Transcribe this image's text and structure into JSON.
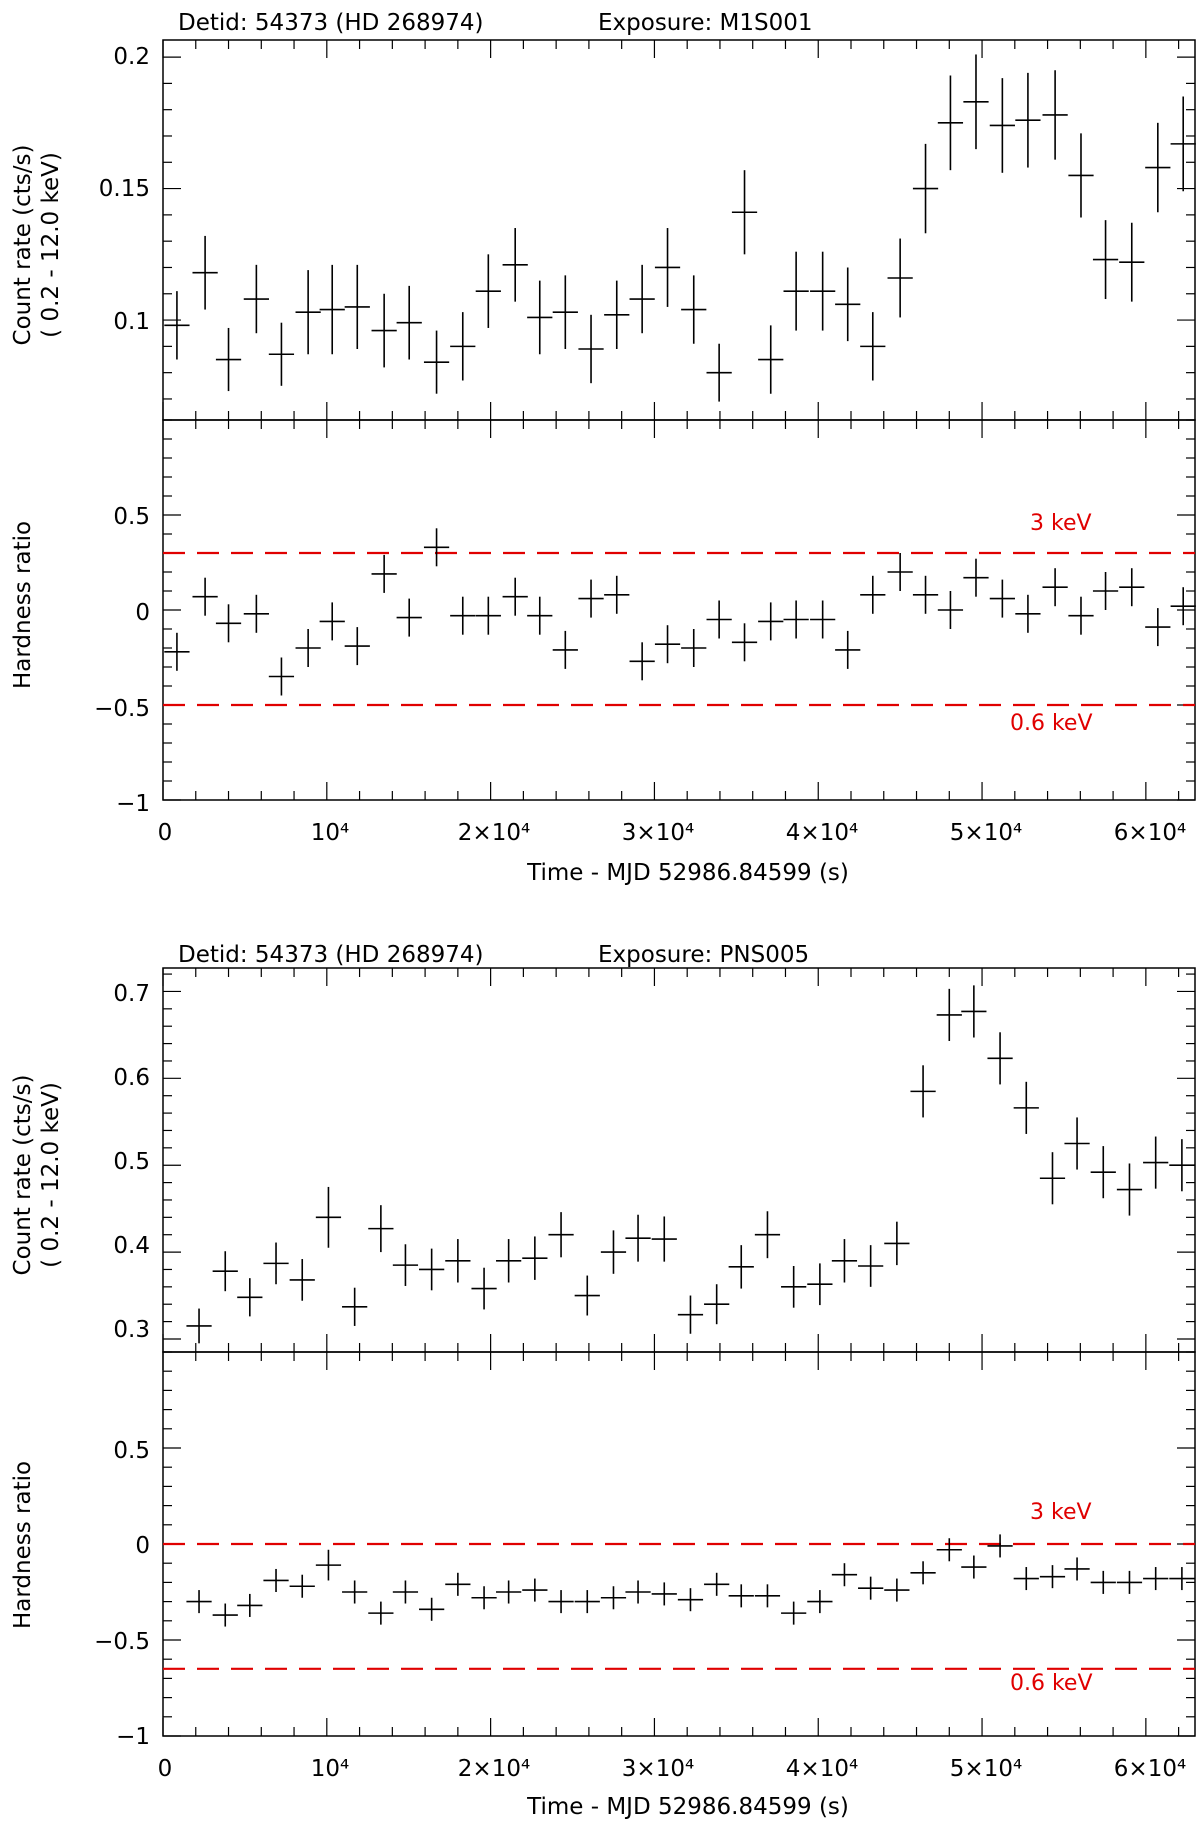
{
  "panels": [
    {
      "title_detid": "Detid: 54373 (HD 268974)",
      "title_exposure": "Exposure: M1S001",
      "xlabel": "Time - MJD  52986.84599 (s)",
      "top_ylabel_1": "Count rate (cts/s)",
      "top_ylabel_2": "( 0.2 - 12.0 keV)",
      "bottom_ylabel": "Hardness ratio",
      "x_tick_labels": [
        "0",
        "10⁴",
        "2×10⁴",
        "3×10⁴",
        "4×10⁴",
        "5×10⁴",
        "6×10⁴"
      ],
      "top_ytick_labels": [
        "0.1",
        "0.15",
        "0.2"
      ],
      "bottom_ytick_labels": [
        "−1",
        "−0.5",
        "0",
        "0.5"
      ],
      "ref_label_high": "3 keV",
      "ref_label_low": "0.6 keV"
    },
    {
      "title_detid": "Detid: 54373 (HD 268974)",
      "title_exposure": "Exposure: PNS005",
      "xlabel": "Time - MJD  52986.84599 (s)",
      "top_ylabel_1": "Count rate (cts/s)",
      "top_ylabel_2": "( 0.2 - 12.0 keV)",
      "bottom_ylabel": "Hardness ratio",
      "x_tick_labels": [
        "0",
        "10⁴",
        "2×10⁴",
        "3×10⁴",
        "4×10⁴",
        "5×10⁴",
        "6×10⁴"
      ],
      "top_ytick_labels": [
        "0.3",
        "0.4",
        "0.5",
        "0.6",
        "0.7"
      ],
      "bottom_ytick_labels": [
        "−1",
        "−0.5",
        "0",
        "0.5"
      ],
      "ref_label_high": "3 keV",
      "ref_label_low": "0.6 keV"
    }
  ],
  "chart_data": [
    {
      "type": "scatter",
      "title": "Detid: 54373 (HD 268974)    Exposure: M1S001",
      "xlabel": "Time - MJD  52986.84599 (s)",
      "ylabel": "Count rate (cts/s) ( 0.2 - 12.0 keV)",
      "xlim": [
        0,
        63000
      ],
      "ylim": [
        0.062,
        0.2065
      ],
      "xticks": [
        0,
        10000,
        20000,
        30000,
        40000,
        50000,
        60000
      ],
      "yticks": [
        0.1,
        0.15,
        0.2
      ],
      "x": [
        850,
        2570,
        4000,
        5700,
        7230,
        8860,
        10330,
        11860,
        13500,
        15030,
        16700,
        18300,
        19860,
        21500,
        23000,
        24560,
        26130,
        27700,
        29250,
        30800,
        32400,
        33950,
        35500,
        37100,
        38650,
        40270,
        41800,
        43330,
        45000,
        46550,
        48070,
        49630,
        51240,
        52800,
        54460,
        56040,
        57540,
        59140,
        60730,
        62280
      ],
      "y": [
        0.098,
        0.118,
        0.085,
        0.108,
        0.087,
        0.103,
        0.104,
        0.105,
        0.096,
        0.099,
        0.084,
        0.09,
        0.111,
        0.121,
        0.101,
        0.103,
        0.089,
        0.102,
        0.108,
        0.12,
        0.104,
        0.08,
        0.141,
        0.085,
        0.111,
        0.111,
        0.106,
        0.09,
        0.116,
        0.15,
        0.175,
        0.183,
        0.174,
        0.176,
        0.178,
        0.155,
        0.123,
        0.122,
        0.158,
        0.167
      ],
      "y_err": [
        0.013,
        0.014,
        0.012,
        0.013,
        0.012,
        0.016,
        0.017,
        0.016,
        0.014,
        0.014,
        0.012,
        0.013,
        0.014,
        0.014,
        0.014,
        0.014,
        0.013,
        0.013,
        0.013,
        0.015,
        0.013,
        0.011,
        0.016,
        0.013,
        0.015,
        0.015,
        0.014,
        0.013,
        0.015,
        0.017,
        0.018,
        0.018,
        0.018,
        0.018,
        0.017,
        0.016,
        0.015,
        0.015,
        0.017,
        0.018
      ],
      "x_halfwidth": 770
    },
    {
      "type": "scatter",
      "title": "Detid: 54373 (HD 268974)    Exposure: M1S001",
      "xlabel": "Time - MJD  52986.84599 (s)",
      "ylabel": "Hardness ratio",
      "xlim": [
        0,
        63000
      ],
      "ylim": [
        -1,
        1
      ],
      "xticks": [
        0,
        10000,
        20000,
        30000,
        40000,
        50000,
        60000
      ],
      "yticks": [
        -1,
        -0.5,
        0,
        0.5
      ],
      "ref_lines": [
        {
          "y": 0.3,
          "label": "3 keV"
        },
        {
          "y": -0.5,
          "label": "0.6 keV"
        }
      ],
      "x": [
        850,
        2570,
        4000,
        5700,
        7230,
        8860,
        10330,
        11860,
        13500,
        15030,
        16700,
        18300,
        19860,
        21500,
        23000,
        24560,
        26130,
        27700,
        29250,
        30800,
        32400,
        33950,
        35500,
        37100,
        38650,
        40270,
        41800,
        43330,
        45000,
        46550,
        48070,
        49630,
        51240,
        52800,
        54460,
        56040,
        57540,
        59140,
        60730,
        62280
      ],
      "y": [
        -0.22,
        0.07,
        -0.07,
        -0.02,
        -0.35,
        -0.2,
        -0.06,
        -0.19,
        0.19,
        -0.04,
        0.33,
        -0.03,
        -0.03,
        0.07,
        -0.03,
        -0.21,
        0.06,
        0.08,
        -0.27,
        -0.18,
        -0.2,
        -0.05,
        -0.17,
        -0.06,
        -0.05,
        -0.05,
        -0.21,
        0.08,
        0.2,
        0.08,
        0.0,
        0.17,
        0.06,
        -0.02,
        0.12,
        -0.03,
        0.1,
        0.12,
        -0.09,
        0.02
      ],
      "y_err": [
        0.1,
        0.1,
        0.1,
        0.1,
        0.1,
        0.1,
        0.1,
        0.1,
        0.1,
        0.1,
        0.1,
        0.1,
        0.1,
        0.1,
        0.1,
        0.1,
        0.1,
        0.1,
        0.1,
        0.1,
        0.1,
        0.1,
        0.1,
        0.1,
        0.1,
        0.1,
        0.1,
        0.1,
        0.1,
        0.1,
        0.1,
        0.1,
        0.1,
        0.1,
        0.1,
        0.1,
        0.1,
        0.1,
        0.1,
        0.1
      ],
      "x_halfwidth": 770
    },
    {
      "type": "scatter",
      "title": "Detid: 54373 (HD 268974)    Exposure: PNS005",
      "xlabel": "Time - MJD  52986.84599 (s)",
      "ylabel": "Count rate (cts/s) ( 0.2 - 12.0 keV)",
      "xlim": [
        0,
        63000
      ],
      "ylim": [
        0.285,
        0.727
      ],
      "xticks": [
        0,
        10000,
        20000,
        30000,
        40000,
        50000,
        60000
      ],
      "yticks": [
        0.3,
        0.4,
        0.5,
        0.6,
        0.7
      ],
      "x": [
        2200,
        3800,
        5300,
        6900,
        8500,
        10100,
        11700,
        13300,
        14800,
        16400,
        18000,
        19600,
        21100,
        22700,
        24300,
        25900,
        27500,
        29000,
        30600,
        32200,
        33800,
        35300,
        36900,
        38500,
        40100,
        41600,
        43200,
        44800,
        46400,
        48000,
        49500,
        51100,
        52700,
        54300,
        55800,
        57400,
        59000,
        60600,
        62200
      ],
      "y": [
        0.315,
        0.378,
        0.348,
        0.387,
        0.368,
        0.44,
        0.337,
        0.427,
        0.385,
        0.38,
        0.39,
        0.358,
        0.39,
        0.393,
        0.42,
        0.35,
        0.4,
        0.416,
        0.415,
        0.328,
        0.34,
        0.383,
        0.42,
        0.36,
        0.363,
        0.39,
        0.384,
        0.41,
        0.585,
        0.673,
        0.677,
        0.623,
        0.566,
        0.485,
        0.525,
        0.492,
        0.472,
        0.503,
        0.5
      ],
      "y_err": [
        0.02,
        0.023,
        0.022,
        0.024,
        0.024,
        0.035,
        0.022,
        0.027,
        0.024,
        0.024,
        0.025,
        0.024,
        0.025,
        0.025,
        0.026,
        0.023,
        0.025,
        0.027,
        0.026,
        0.022,
        0.023,
        0.025,
        0.027,
        0.024,
        0.024,
        0.025,
        0.024,
        0.025,
        0.03,
        0.03,
        0.03,
        0.03,
        0.03,
        0.03,
        0.03,
        0.03,
        0.03,
        0.03,
        0.03
      ],
      "x_halfwidth": 770
    },
    {
      "type": "scatter",
      "title": "Detid: 54373 (HD 268974)    Exposure: PNS005",
      "xlabel": "Time - MJD  52986.84599 (s)",
      "ylabel": "Hardness ratio",
      "xlim": [
        0,
        63000
      ],
      "ylim": [
        -1,
        1
      ],
      "xticks": [
        0,
        10000,
        20000,
        30000,
        40000,
        50000,
        60000
      ],
      "yticks": [
        -1,
        -0.5,
        0,
        0.5
      ],
      "ref_lines": [
        {
          "y": 0.0,
          "label": "3 keV"
        },
        {
          "y": -0.65,
          "label": "0.6 keV"
        }
      ],
      "x": [
        2200,
        3800,
        5300,
        6900,
        8500,
        10100,
        11700,
        13300,
        14800,
        16400,
        18000,
        19600,
        21100,
        22700,
        24300,
        25900,
        27500,
        29000,
        30600,
        32200,
        33800,
        35300,
        36900,
        38500,
        40100,
        41600,
        43200,
        44800,
        46400,
        48000,
        49500,
        51100,
        52700,
        54300,
        55800,
        57400,
        59000,
        60600,
        62200
      ],
      "y": [
        -0.3,
        -0.37,
        -0.32,
        -0.19,
        -0.22,
        -0.11,
        -0.25,
        -0.36,
        -0.25,
        -0.34,
        -0.21,
        -0.28,
        -0.25,
        -0.24,
        -0.3,
        -0.3,
        -0.28,
        -0.25,
        -0.26,
        -0.29,
        -0.21,
        -0.27,
        -0.27,
        -0.36,
        -0.3,
        -0.16,
        -0.23,
        -0.24,
        -0.15,
        -0.03,
        -0.12,
        -0.01,
        -0.18,
        -0.17,
        -0.13,
        -0.2,
        -0.2,
        -0.18,
        -0.18
      ],
      "y_err": [
        0.06,
        0.06,
        0.06,
        0.06,
        0.06,
        0.08,
        0.06,
        0.06,
        0.06,
        0.06,
        0.06,
        0.06,
        0.06,
        0.06,
        0.06,
        0.06,
        0.06,
        0.06,
        0.06,
        0.06,
        0.06,
        0.06,
        0.06,
        0.06,
        0.06,
        0.06,
        0.06,
        0.06,
        0.06,
        0.06,
        0.06,
        0.06,
        0.06,
        0.06,
        0.06,
        0.06,
        0.06,
        0.06,
        0.06
      ],
      "x_halfwidth": 770
    }
  ]
}
